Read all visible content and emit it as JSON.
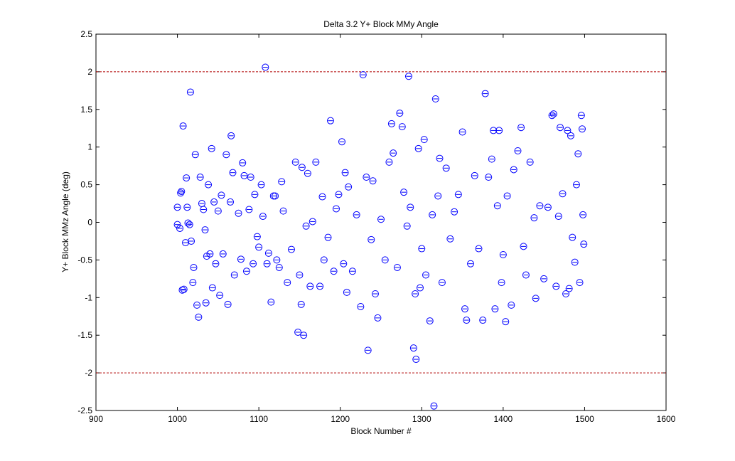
{
  "chart_data": {
    "type": "scatter",
    "title": "Delta 3.2 Y+ Block MMy Angle",
    "x_label": "Block Number #",
    "y_label": "Y+ Block MMz Angle (deg)",
    "xlim": [
      900,
      1600
    ],
    "xticks": [
      900,
      1000,
      1100,
      1200,
      1300,
      1400,
      1500,
      1600
    ],
    "ylim": [
      -2.5,
      2.5
    ],
    "yticks": [
      -2.5,
      -2,
      -1.5,
      -1,
      -0.5,
      0,
      0.5,
      1,
      1.5,
      2,
      2.5
    ],
    "limit_lines": [
      {
        "value": 2,
        "color": "#b00000"
      },
      {
        "value": -2,
        "color": "#b00000"
      }
    ],
    "series": [
      {
        "color": "#0000ff",
        "x": [
          1000,
          1000,
          1003,
          1004,
          1005,
          1006,
          1007,
          1008,
          1010,
          1011,
          1012,
          1013,
          1015,
          1016,
          1017,
          1019,
          1020,
          1022,
          1024,
          1026,
          1028,
          1030,
          1032,
          1034,
          1035,
          1036,
          1038,
          1040,
          1042,
          1043,
          1045,
          1047,
          1050,
          1052,
          1054,
          1056,
          1060,
          1062,
          1065,
          1066,
          1068,
          1070,
          1075,
          1078,
          1080,
          1082,
          1085,
          1088,
          1090,
          1093,
          1095,
          1098,
          1100,
          1103,
          1105,
          1108,
          1110,
          1112,
          1115,
          1118,
          1120,
          1122,
          1125,
          1128,
          1130,
          1135,
          1140,
          1145,
          1148,
          1150,
          1152,
          1153,
          1155,
          1158,
          1160,
          1163,
          1166,
          1170,
          1175,
          1178,
          1180,
          1185,
          1188,
          1192,
          1195,
          1198,
          1202,
          1204,
          1206,
          1208,
          1210,
          1215,
          1220,
          1225,
          1228,
          1232,
          1234,
          1238,
          1240,
          1243,
          1246,
          1250,
          1255,
          1260,
          1263,
          1265,
          1270,
          1273,
          1276,
          1278,
          1282,
          1284,
          1286,
          1290,
          1292,
          1293,
          1296,
          1298,
          1300,
          1303,
          1305,
          1310,
          1313,
          1315,
          1317,
          1320,
          1322,
          1325,
          1330,
          1335,
          1340,
          1345,
          1350,
          1353,
          1355,
          1360,
          1365,
          1370,
          1375,
          1378,
          1382,
          1386,
          1388,
          1390,
          1393,
          1395,
          1398,
          1400,
          1403,
          1405,
          1410,
          1413,
          1418,
          1422,
          1425,
          1428,
          1433,
          1438,
          1440,
          1445,
          1450,
          1455,
          1460,
          1462,
          1465,
          1468,
          1470,
          1473,
          1477,
          1479,
          1481,
          1483,
          1485,
          1488,
          1490,
          1492,
          1494,
          1496,
          1497,
          1498,
          1499
        ],
        "values": [
          0.2,
          -0.03,
          -0.08,
          0.39,
          0.41,
          -0.9,
          1.28,
          -0.89,
          -0.27,
          0.59,
          0.2,
          -0.01,
          -0.03,
          1.73,
          -0.25,
          -0.8,
          -0.6,
          0.9,
          -1.1,
          -1.26,
          0.6,
          0.25,
          0.17,
          -0.1,
          -1.07,
          -0.45,
          0.5,
          -0.42,
          0.98,
          -0.87,
          0.27,
          -0.55,
          0.15,
          -0.97,
          0.36,
          -0.42,
          0.9,
          -1.09,
          0.27,
          1.15,
          0.66,
          -0.7,
          0.12,
          -0.49,
          0.79,
          0.62,
          -0.65,
          0.17,
          0.6,
          -0.55,
          0.37,
          -0.19,
          -0.33,
          0.5,
          0.08,
          2.06,
          -0.55,
          -0.41,
          -1.06,
          0.35,
          0.35,
          -0.5,
          -0.6,
          0.54,
          0.15,
          -0.8,
          -0.36,
          0.8,
          -1.46,
          -0.7,
          -1.09,
          0.73,
          -1.5,
          -0.05,
          0.65,
          -0.85,
          0.01,
          0.8,
          -0.85,
          0.34,
          -0.5,
          -0.2,
          1.35,
          -0.65,
          0.18,
          0.37,
          1.07,
          -0.55,
          0.66,
          -0.93,
          0.47,
          -0.65,
          0.1,
          -1.12,
          1.96,
          0.6,
          -1.7,
          -0.23,
          0.55,
          -0.95,
          -1.27,
          0.04,
          -0.5,
          0.8,
          1.31,
          0.92,
          -0.6,
          1.45,
          1.27,
          0.4,
          -0.05,
          1.94,
          0.2,
          -1.67,
          -0.95,
          -1.82,
          0.98,
          -0.87,
          -0.35,
          1.1,
          -0.7,
          -1.31,
          0.1,
          -2.44,
          1.64,
          0.35,
          0.85,
          -0.8,
          0.72,
          -0.22,
          0.14,
          0.37,
          1.2,
          -1.15,
          -1.3,
          -0.55,
          0.62,
          -0.35,
          -1.3,
          1.71,
          0.6,
          0.84,
          1.22,
          -1.15,
          0.22,
          1.22,
          -0.8,
          -0.43,
          -1.32,
          0.35,
          -1.1,
          0.7,
          0.95,
          1.26,
          -0.32,
          -0.7,
          0.8,
          0.06,
          -1.01,
          0.22,
          -0.75,
          0.2,
          1.42,
          1.44,
          -0.85,
          0.08,
          1.26,
          0.38,
          -0.95,
          1.22,
          -0.88,
          1.15,
          -0.2,
          -0.53,
          0.5,
          0.91,
          -0.8,
          1.42,
          1.24,
          0.1,
          -0.29
        ]
      }
    ]
  }
}
